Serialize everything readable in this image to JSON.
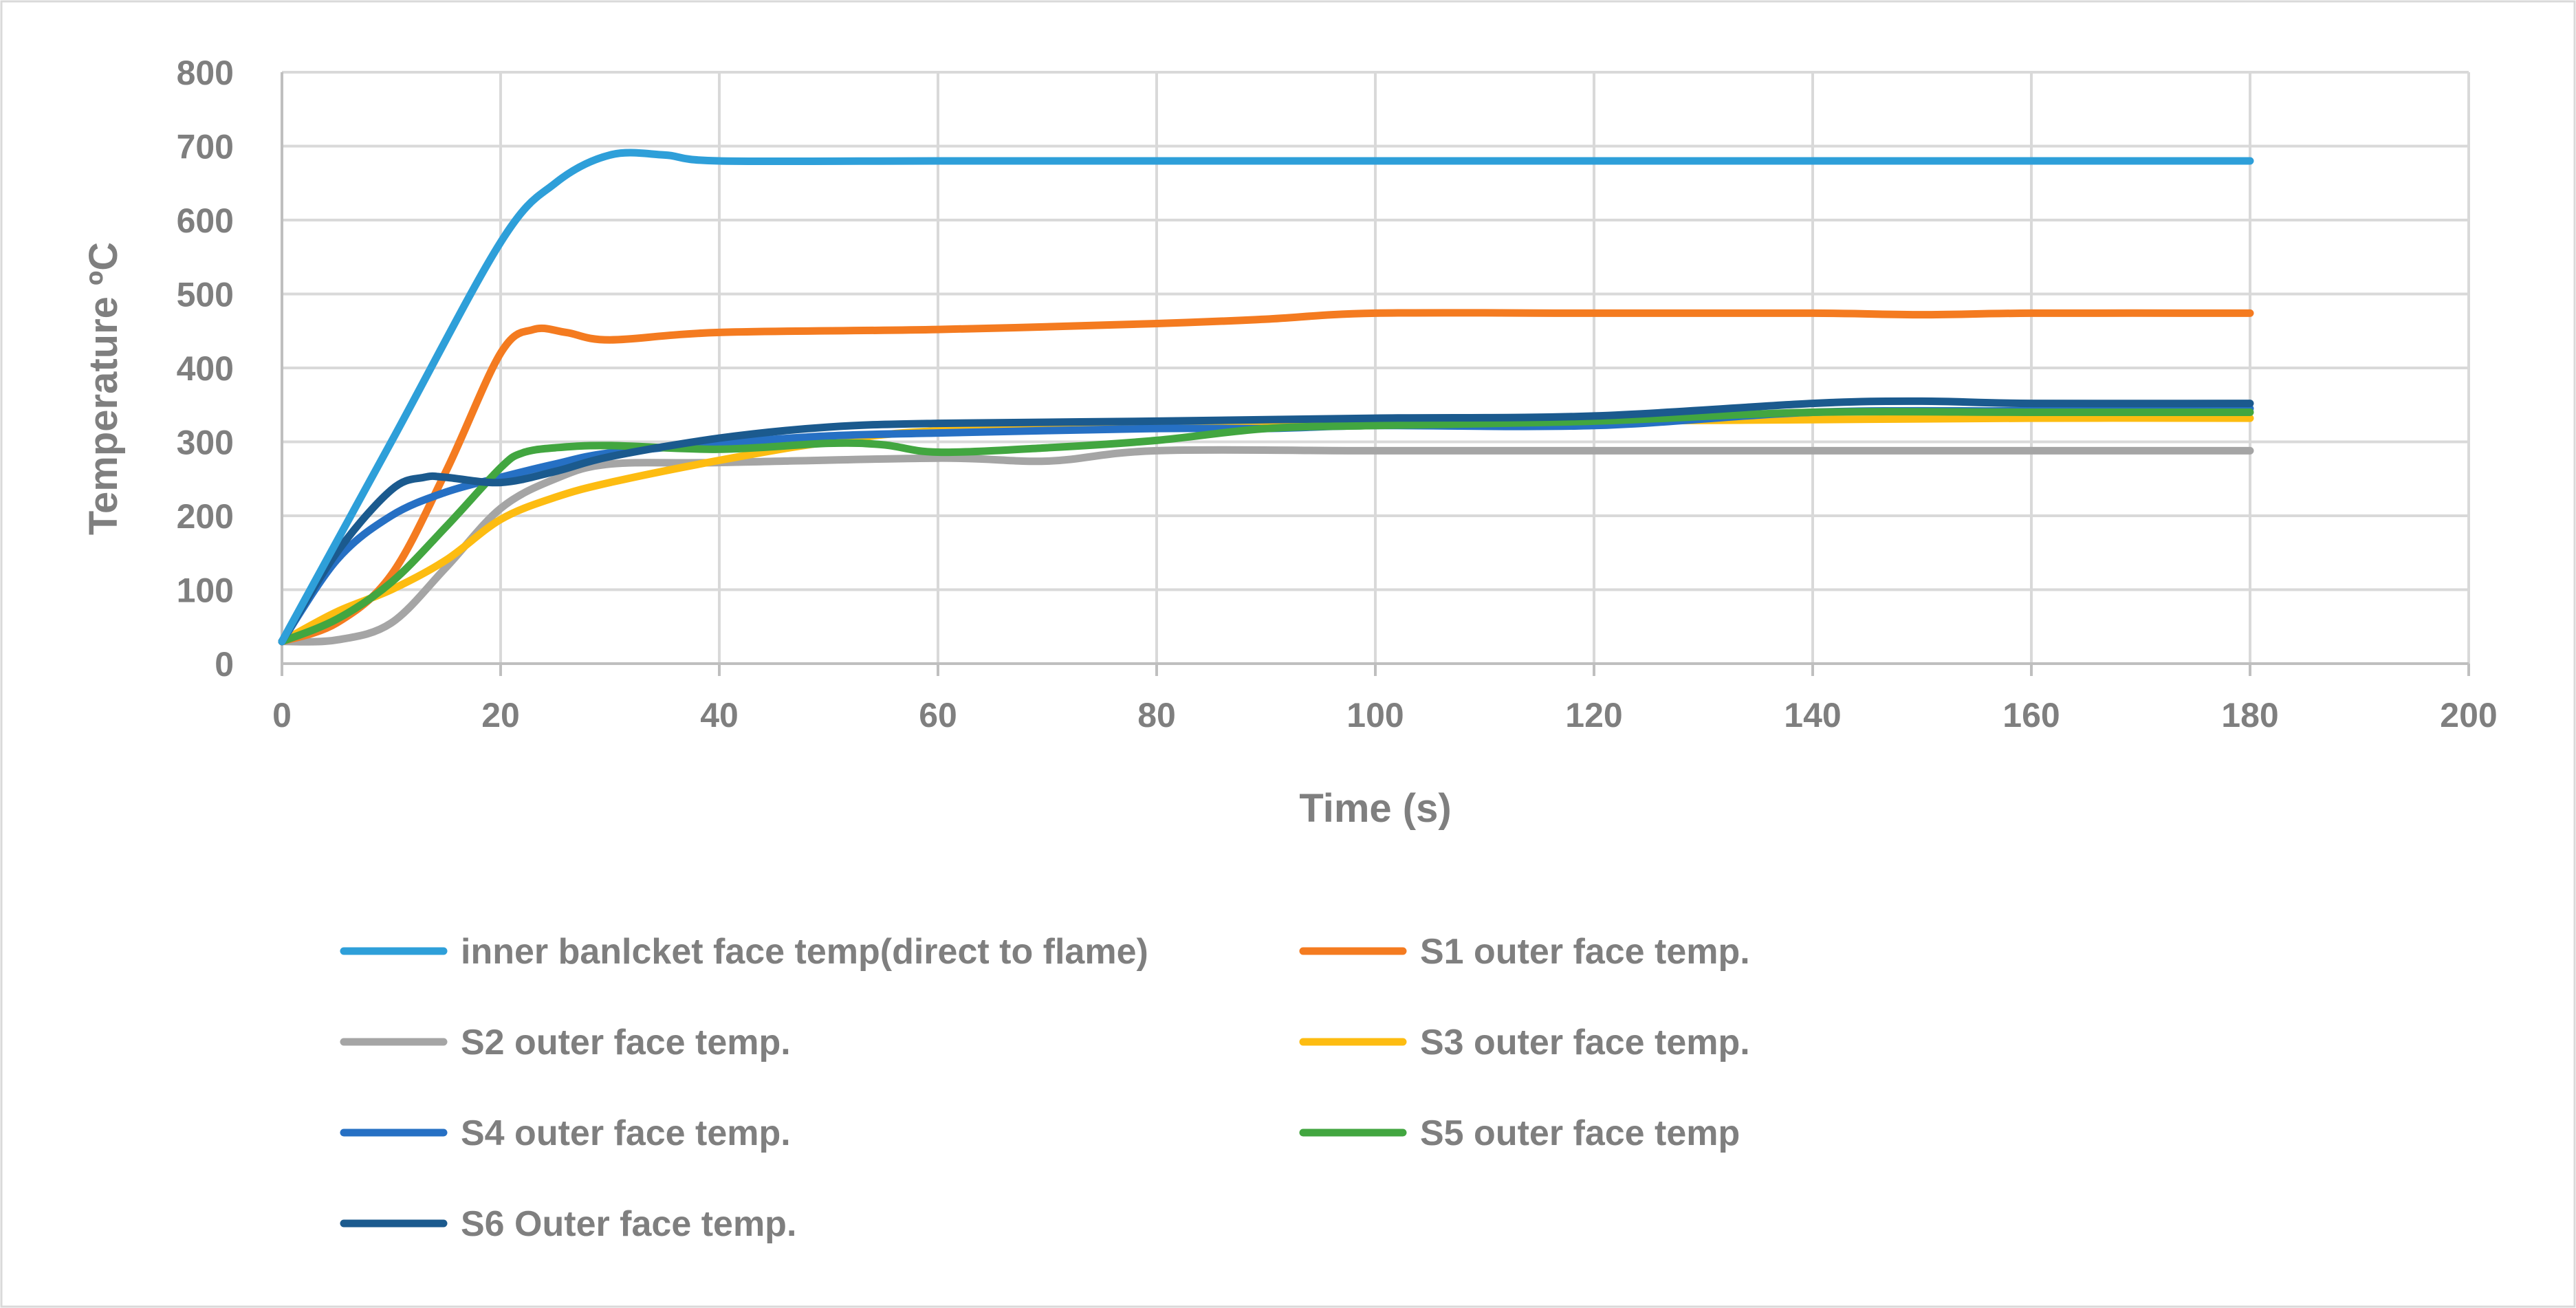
{
  "chart_data": {
    "type": "line",
    "title": "",
    "xlabel": "Time (s)",
    "ylabel": "Temperature ºC",
    "xlim": [
      0,
      200
    ],
    "ylim": [
      0,
      800
    ],
    "xticks": [
      0,
      20,
      40,
      60,
      80,
      100,
      120,
      140,
      160,
      180,
      200
    ],
    "yticks": [
      0,
      100,
      200,
      300,
      400,
      500,
      600,
      700,
      800
    ],
    "grid": true,
    "legend_position": "bottom",
    "series": [
      {
        "name": "inner banlcket face temp(direct to flame)",
        "color": "#2e9fd9",
        "x": [
          0,
          10,
          20,
          25,
          30,
          35,
          40,
          60,
          80,
          100,
          120,
          140,
          160,
          180
        ],
        "y": [
          30,
          300,
          570,
          650,
          688,
          688,
          680,
          680,
          680,
          680,
          680,
          680,
          680,
          680
        ]
      },
      {
        "name": "S1 outer face temp.",
        "color": "#f47b20",
        "x": [
          0,
          5,
          10,
          15,
          20,
          23,
          26,
          30,
          40,
          60,
          80,
          90,
          100,
          120,
          140,
          150,
          160,
          180
        ],
        "y": [
          30,
          55,
          120,
          260,
          420,
          452,
          448,
          438,
          448,
          452,
          460,
          466,
          474,
          474,
          474,
          472,
          474,
          474
        ]
      },
      {
        "name": "S2 outer face temp.",
        "color": "#a5a5a5",
        "x": [
          0,
          5,
          10,
          15,
          20,
          25,
          30,
          40,
          60,
          70,
          80,
          100,
          120,
          140,
          160,
          180
        ],
        "y": [
          30,
          32,
          55,
          130,
          210,
          250,
          270,
          272,
          278,
          274,
          288,
          288,
          288,
          288,
          288,
          288
        ]
      },
      {
        "name": "S3 outer face temp.",
        "color": "#fdbc11",
        "x": [
          0,
          5,
          10,
          15,
          20,
          25,
          30,
          40,
          50,
          60,
          80,
          100,
          120,
          140,
          160,
          180
        ],
        "y": [
          30,
          70,
          100,
          140,
          195,
          225,
          245,
          275,
          300,
          315,
          322,
          325,
          328,
          330,
          332,
          332
        ]
      },
      {
        "name": "S4 outer face temp.",
        "color": "#2670c4",
        "x": [
          0,
          5,
          10,
          15,
          20,
          25,
          30,
          40,
          50,
          60,
          80,
          90,
          100,
          120,
          140,
          160,
          180
        ],
        "y": [
          30,
          140,
          200,
          232,
          252,
          270,
          285,
          298,
          308,
          312,
          318,
          318,
          322,
          322,
          340,
          342,
          345
        ]
      },
      {
        "name": "S5 outer face temp",
        "color": "#42a640",
        "x": [
          0,
          5,
          10,
          15,
          20,
          22,
          25,
          30,
          40,
          50,
          55,
          60,
          70,
          80,
          90,
          100,
          120,
          140,
          160,
          180
        ],
        "y": [
          30,
          60,
          110,
          185,
          265,
          285,
          292,
          295,
          290,
          298,
          296,
          286,
          292,
          302,
          318,
          322,
          328,
          340,
          340,
          340
        ]
      },
      {
        "name": "S6 Outer face temp.",
        "color": "#1b5a8e",
        "x": [
          0,
          5,
          10,
          13,
          15,
          20,
          25,
          30,
          40,
          50,
          60,
          80,
          100,
          120,
          140,
          150,
          160,
          180
        ],
        "y": [
          30,
          150,
          235,
          252,
          252,
          245,
          260,
          280,
          305,
          320,
          325,
          328,
          332,
          335,
          352,
          355,
          352,
          352
        ]
      }
    ]
  }
}
